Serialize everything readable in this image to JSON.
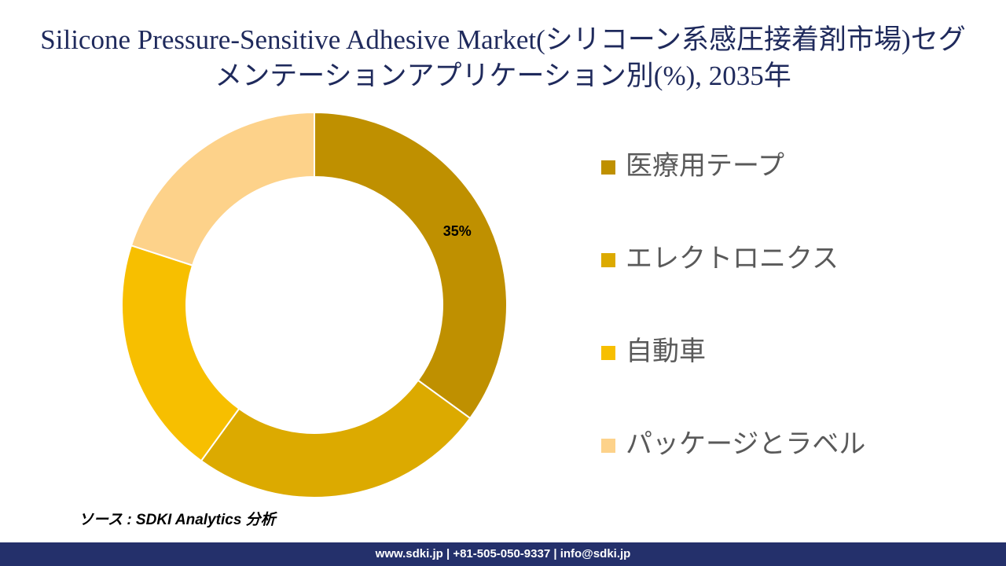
{
  "chart_data": {
    "type": "donut",
    "title": "Silicone Pressure-Sensitive Adhesive Market(シリコーン系感圧接着剤市場)セグメンテーションアプリケーション別(%), 2035年",
    "categories": [
      "医療用テープ",
      "エレクトロニクス",
      "自動車",
      "パッケージとラベル"
    ],
    "values": [
      35,
      25,
      20,
      20
    ],
    "value_labels": [
      "35%",
      null,
      null,
      null
    ],
    "colors": [
      "#bf9000",
      "#dcaa00",
      "#f7bf00",
      "#fdd28a"
    ],
    "source": "ソース : SDKI Analytics 分析",
    "footer": "www.sdki.jp | +81-505-050-9337 | info@sdki.jp"
  }
}
